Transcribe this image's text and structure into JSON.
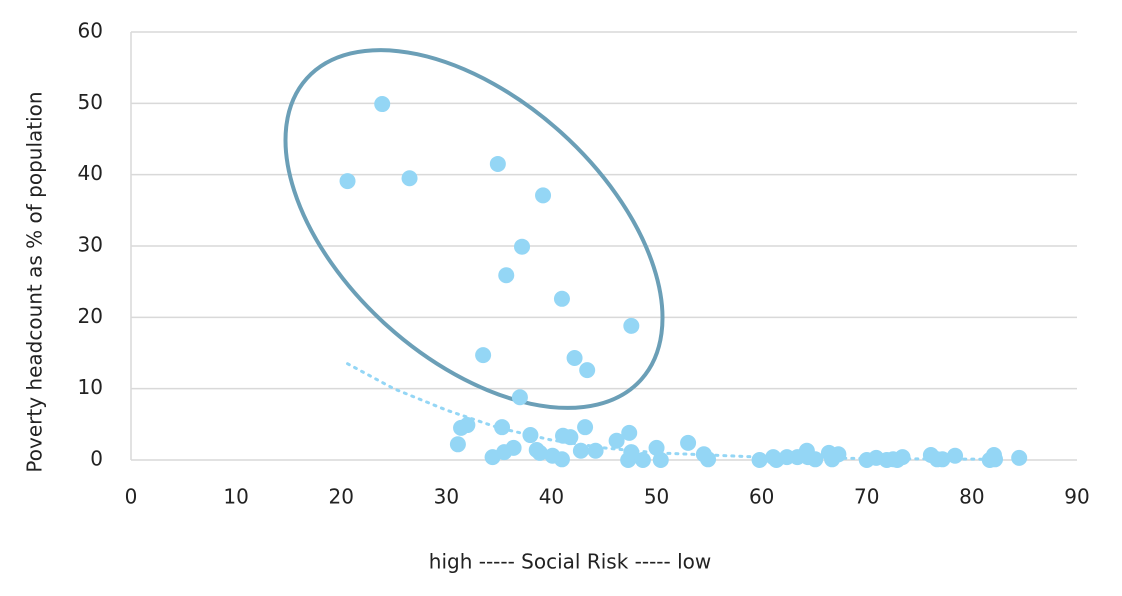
{
  "chart_data": {
    "type": "scatter",
    "y_label": "Poverty headcount as % of population",
    "x_label": "high ----- Social Risk ----- low",
    "xlim": [
      0,
      90
    ],
    "xticks": [
      0,
      10,
      20,
      30,
      40,
      50,
      60,
      70,
      80,
      90
    ],
    "ylim": [
      0,
      60
    ],
    "yticks": [
      0,
      10,
      20,
      30,
      40,
      50,
      60
    ],
    "grid": true,
    "color": "#94d6f5",
    "x": [
      20.6,
      23.9,
      26.5,
      34.9,
      39.2,
      37.2,
      35.7,
      41.0,
      47.6,
      33.5,
      42.2,
      43.4,
      37.0,
      31.1,
      31.4,
      32.0,
      35.3,
      34.4,
      35.5,
      36.4,
      38.0,
      38.6,
      38.9,
      40.1,
      41.0,
      41.1,
      41.8,
      42.8,
      43.2,
      44.2,
      46.2,
      47.4,
      47.3,
      47.6,
      48.7,
      50.0,
      50.4,
      53.0,
      54.5,
      54.9,
      59.8,
      61.1,
      61.4,
      62.4,
      63.4,
      64.3,
      64.4,
      65.1,
      66.4,
      66.7,
      67.3,
      70.0,
      70.9,
      71.9,
      72.5,
      72.9,
      73.4,
      76.1,
      76.7,
      77.2,
      78.4,
      81.7,
      82.1,
      82.2,
      84.5
    ],
    "values": [
      39.1,
      49.9,
      39.5,
      41.5,
      37.1,
      29.9,
      25.9,
      22.6,
      18.8,
      14.7,
      14.3,
      12.6,
      8.8,
      2.2,
      4.5,
      4.9,
      4.6,
      0.4,
      1.1,
      1.7,
      3.5,
      1.4,
      1.0,
      0.6,
      0.1,
      3.4,
      3.2,
      1.3,
      4.6,
      1.3,
      2.7,
      3.8,
      0,
      1.1,
      0,
      1.7,
      0,
      2.4,
      0.8,
      0.1,
      0,
      0.4,
      0,
      0.4,
      0.4,
      1.3,
      0.4,
      0.1,
      1.0,
      0.1,
      0.8,
      0,
      0.3,
      0,
      0.1,
      0,
      0.4,
      0.7,
      0.1,
      0.1,
      0.6,
      0,
      0.7,
      0.1,
      0.3
    ],
    "trendline": {
      "x": [
        20.6,
        25,
        30,
        35,
        40,
        45,
        50,
        60,
        70,
        82
      ],
      "values": [
        13.5,
        10,
        7,
        4.5,
        2.8,
        1.7,
        1.0,
        0.4,
        0.2,
        0.1
      ]
    }
  }
}
